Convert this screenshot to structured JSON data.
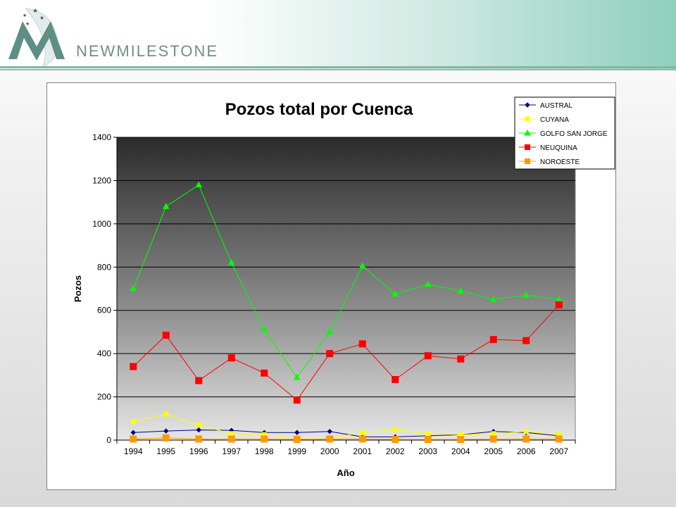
{
  "brand": {
    "name": "NEWMILESTONE"
  },
  "chart_data": {
    "type": "line",
    "title": "Pozos total por Cuenca",
    "xlabel": "Año",
    "ylabel": "Pozos",
    "ylim": [
      0,
      1400
    ],
    "yticks": [
      0,
      200,
      400,
      600,
      800,
      1000,
      1200,
      1400
    ],
    "categories": [
      "1994",
      "1995",
      "1996",
      "1997",
      "1998",
      "1999",
      "2000",
      "2001",
      "2002",
      "2003",
      "2004",
      "2005",
      "2006",
      "2007"
    ],
    "grid": true,
    "legend_position": "top-right",
    "series": [
      {
        "name": "AUSTRAL",
        "color": "#000080",
        "marker": "diamond",
        "values": [
          35,
          42,
          47,
          45,
          35,
          35,
          40,
          15,
          15,
          20,
          25,
          40,
          35,
          20
        ]
      },
      {
        "name": "CUYANA",
        "color": "#ffff00",
        "marker": "square",
        "values": [
          85,
          120,
          70,
          30,
          25,
          10,
          10,
          35,
          48,
          30,
          25,
          30,
          40,
          25
        ]
      },
      {
        "name": "GOLFO SAN JORGE",
        "color": "#00ff00",
        "marker": "triangle",
        "values": [
          700,
          1080,
          1180,
          820,
          510,
          290,
          500,
          805,
          675,
          720,
          690,
          650,
          670,
          650
        ]
      },
      {
        "name": "NEUQUINA",
        "color": "#ff0000",
        "marker": "square",
        "values": [
          340,
          485,
          275,
          380,
          310,
          185,
          400,
          445,
          280,
          390,
          375,
          465,
          460,
          625
        ]
      },
      {
        "name": "NOROESTE",
        "color": "#ff9900",
        "marker": "square",
        "values": [
          5,
          10,
          5,
          5,
          5,
          3,
          5,
          5,
          3,
          3,
          3,
          5,
          5,
          5
        ]
      }
    ]
  }
}
